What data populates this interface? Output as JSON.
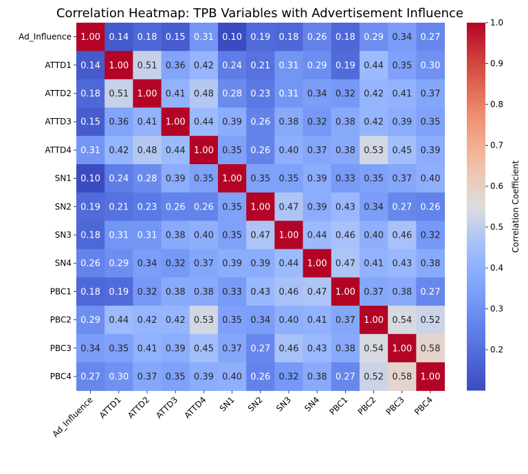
{
  "chart_data": {
    "type": "heatmap",
    "title": "Correlation Heatmap: TPB Variables with Advertisement Influence",
    "labels": [
      "Ad_Influence",
      "ATTD1",
      "ATTD2",
      "ATTD3",
      "ATTD4",
      "SN1",
      "SN2",
      "SN3",
      "SN4",
      "PBC1",
      "PBC2",
      "PBC3",
      "PBC4"
    ],
    "matrix": [
      [
        1.0,
        0.14,
        0.18,
        0.15,
        0.31,
        0.1,
        0.19,
        0.18,
        0.26,
        0.18,
        0.29,
        0.34,
        0.27
      ],
      [
        0.14,
        1.0,
        0.51,
        0.36,
        0.42,
        0.24,
        0.21,
        0.31,
        0.29,
        0.19,
        0.44,
        0.35,
        0.3
      ],
      [
        0.18,
        0.51,
        1.0,
        0.41,
        0.48,
        0.28,
        0.23,
        0.31,
        0.34,
        0.32,
        0.42,
        0.41,
        0.37
      ],
      [
        0.15,
        0.36,
        0.41,
        1.0,
        0.44,
        0.39,
        0.26,
        0.38,
        0.32,
        0.38,
        0.42,
        0.39,
        0.35
      ],
      [
        0.31,
        0.42,
        0.48,
        0.44,
        1.0,
        0.35,
        0.26,
        0.4,
        0.37,
        0.38,
        0.53,
        0.45,
        0.39
      ],
      [
        0.1,
        0.24,
        0.28,
        0.39,
        0.35,
        1.0,
        0.35,
        0.35,
        0.39,
        0.33,
        0.35,
        0.37,
        0.4
      ],
      [
        0.19,
        0.21,
        0.23,
        0.26,
        0.26,
        0.35,
        1.0,
        0.47,
        0.39,
        0.43,
        0.34,
        0.27,
        0.26
      ],
      [
        0.18,
        0.31,
        0.31,
        0.38,
        0.4,
        0.35,
        0.47,
        1.0,
        0.44,
        0.46,
        0.4,
        0.46,
        0.32
      ],
      [
        0.26,
        0.29,
        0.34,
        0.32,
        0.37,
        0.39,
        0.39,
        0.44,
        1.0,
        0.47,
        0.41,
        0.43,
        0.38
      ],
      [
        0.18,
        0.19,
        0.32,
        0.38,
        0.38,
        0.33,
        0.43,
        0.46,
        0.47,
        1.0,
        0.37,
        0.38,
        0.27
      ],
      [
        0.29,
        0.44,
        0.42,
        0.42,
        0.53,
        0.35,
        0.34,
        0.4,
        0.41,
        0.37,
        1.0,
        0.54,
        0.52
      ],
      [
        0.34,
        0.35,
        0.41,
        0.39,
        0.45,
        0.37,
        0.27,
        0.46,
        0.43,
        0.38,
        0.54,
        1.0,
        0.58
      ],
      [
        0.27,
        0.3,
        0.37,
        0.35,
        0.39,
        0.4,
        0.26,
        0.32,
        0.38,
        0.27,
        0.52,
        0.58,
        1.0
      ]
    ],
    "colormap": "coolwarm",
    "value_range": [
      0.1,
      1.0
    ],
    "colorbar": {
      "label": "Correlation Coefficient",
      "ticks": [
        "0.2",
        "0.3",
        "0.4",
        "0.5",
        "0.6",
        "0.7",
        "0.8",
        "0.9",
        "1.0"
      ]
    },
    "grid": false,
    "legend": "colorbar-right"
  }
}
